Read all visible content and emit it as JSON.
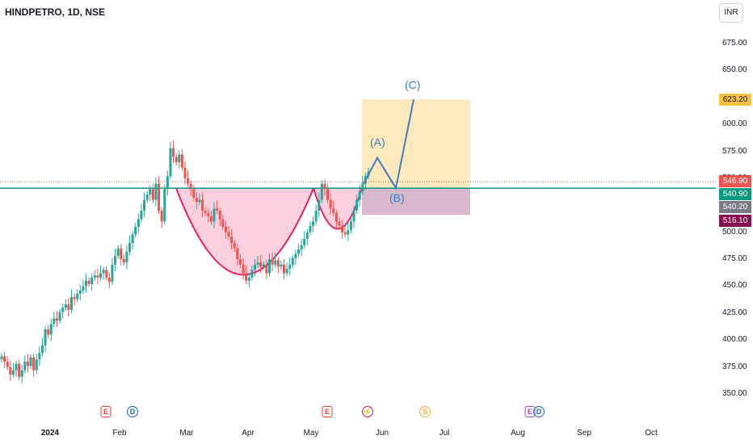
{
  "title": "HINDPETRO, 1D, NSE",
  "currency": "INR",
  "colors": {
    "up": "#26a69a",
    "down": "#ef5350",
    "cup": "#f8bbd0",
    "cup_line": "#e91e63",
    "target_box": "#fde7b4",
    "stop_box": "#d4b0c8",
    "wave_line": "#3d7fc1",
    "support_line": "#089981",
    "resistance_line": "#ef5350"
  },
  "chart_data": {
    "type": "candlestick",
    "ylim": [
      330,
      700
    ],
    "yticks": [
      "675.00",
      "650.00",
      "625.00",
      "600.00",
      "575.00",
      "550.00",
      "525.00",
      "500.00",
      "475.00",
      "450.00",
      "425.00",
      "400.00",
      "375.00",
      "350.00"
    ],
    "xticks": [
      {
        "label": "2024",
        "bold": true
      },
      {
        "label": "Feb",
        "bold": false
      },
      {
        "label": "Mar",
        "bold": false
      },
      {
        "label": "Apr",
        "bold": false
      },
      {
        "label": "May",
        "bold": false
      },
      {
        "label": "Jun",
        "bold": false
      },
      {
        "label": "Jul",
        "bold": false
      },
      {
        "label": "Aug",
        "bold": false
      },
      {
        "label": "Sep",
        "bold": false
      },
      {
        "label": "Oct",
        "bold": false
      }
    ],
    "price_labels": [
      {
        "value": 623.2,
        "text": "623.20",
        "color": "#f5c242",
        "text_color": "#131722"
      },
      {
        "value": 546.9,
        "text": "546.90",
        "color": "#ef5350",
        "text_color": "#ffffff"
      },
      {
        "value": 540.9,
        "text": "540.90",
        "color": "#089981",
        "text_color": "#ffffff"
      },
      {
        "value": 540.2,
        "text": "540.20",
        "color": "#787b86",
        "text_color": "#ffffff"
      },
      {
        "value": 516.1,
        "text": "516.10",
        "color": "#880e4f",
        "text_color": "#ffffff"
      }
    ],
    "waves": [
      {
        "label": "(A)",
        "value": 569
      },
      {
        "label": "(B)",
        "value": 541
      },
      {
        "label": "(C)",
        "value": 623.2
      }
    ],
    "closes": [
      385,
      380,
      375,
      368,
      372,
      378,
      366,
      372,
      380,
      376,
      384,
      372,
      382,
      388,
      395,
      410,
      405,
      415,
      420,
      418,
      426,
      430,
      433,
      428,
      440,
      438,
      443,
      446,
      450,
      455,
      452,
      458,
      460,
      458,
      462,
      465,
      458,
      454,
      470,
      478,
      485,
      475,
      472,
      482,
      490,
      498,
      505,
      512,
      520,
      530,
      535,
      540,
      530,
      545,
      520,
      510,
      540,
      552,
      578,
      570,
      565,
      572,
      560,
      550,
      545,
      540,
      532,
      528,
      530,
      520,
      518,
      515,
      510,
      522,
      520,
      512,
      505,
      500,
      496,
      490,
      485,
      475,
      470,
      462,
      455,
      458,
      465,
      470,
      472,
      468,
      470,
      462,
      475,
      470,
      474,
      468,
      470,
      462,
      466,
      470,
      476,
      480,
      484,
      488,
      494,
      500,
      506,
      510,
      520,
      530,
      545,
      540,
      530,
      522,
      518,
      510,
      506,
      500,
      498,
      502,
      510,
      520,
      530,
      538,
      545,
      552,
      556
    ]
  },
  "events": [
    {
      "icon": "E",
      "kind": "earnings"
    },
    {
      "icon": "D",
      "kind": "dividend"
    },
    {
      "icon": "E",
      "kind": "earnings"
    },
    {
      "icon": "⚡",
      "kind": "split"
    },
    {
      "icon": "S",
      "kind": "dividend"
    },
    {
      "icon": "E",
      "kind": "earnings-future"
    },
    {
      "icon": "D",
      "kind": "dividend-future"
    }
  ]
}
